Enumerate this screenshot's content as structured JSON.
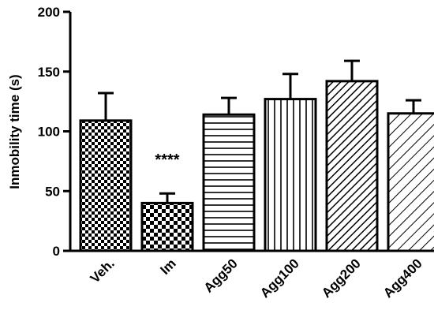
{
  "chart_data": {
    "type": "bar",
    "ylabel": "Inmobility time (s)",
    "xlabel": "",
    "ylim": [
      0,
      200
    ],
    "yticks": [
      0,
      50,
      100,
      150,
      200
    ],
    "categories": [
      "Veh.",
      "Im",
      "Agg50",
      "Agg100",
      "Agg200",
      "Agg400"
    ],
    "values": [
      109,
      40,
      114,
      127,
      142,
      115
    ],
    "errors": [
      23,
      8,
      14,
      21,
      17,
      11
    ],
    "patterns": [
      "checker-fine",
      "checker-coarse",
      "horizontal-lines",
      "vertical-lines",
      "diagonal-dense",
      "diagonal-sparse"
    ],
    "annotations": [
      {
        "category": "Im",
        "text": "****"
      }
    ],
    "grid": false,
    "legend": "none"
  },
  "colors": {
    "ink": "#000000",
    "background": "#ffffff"
  }
}
